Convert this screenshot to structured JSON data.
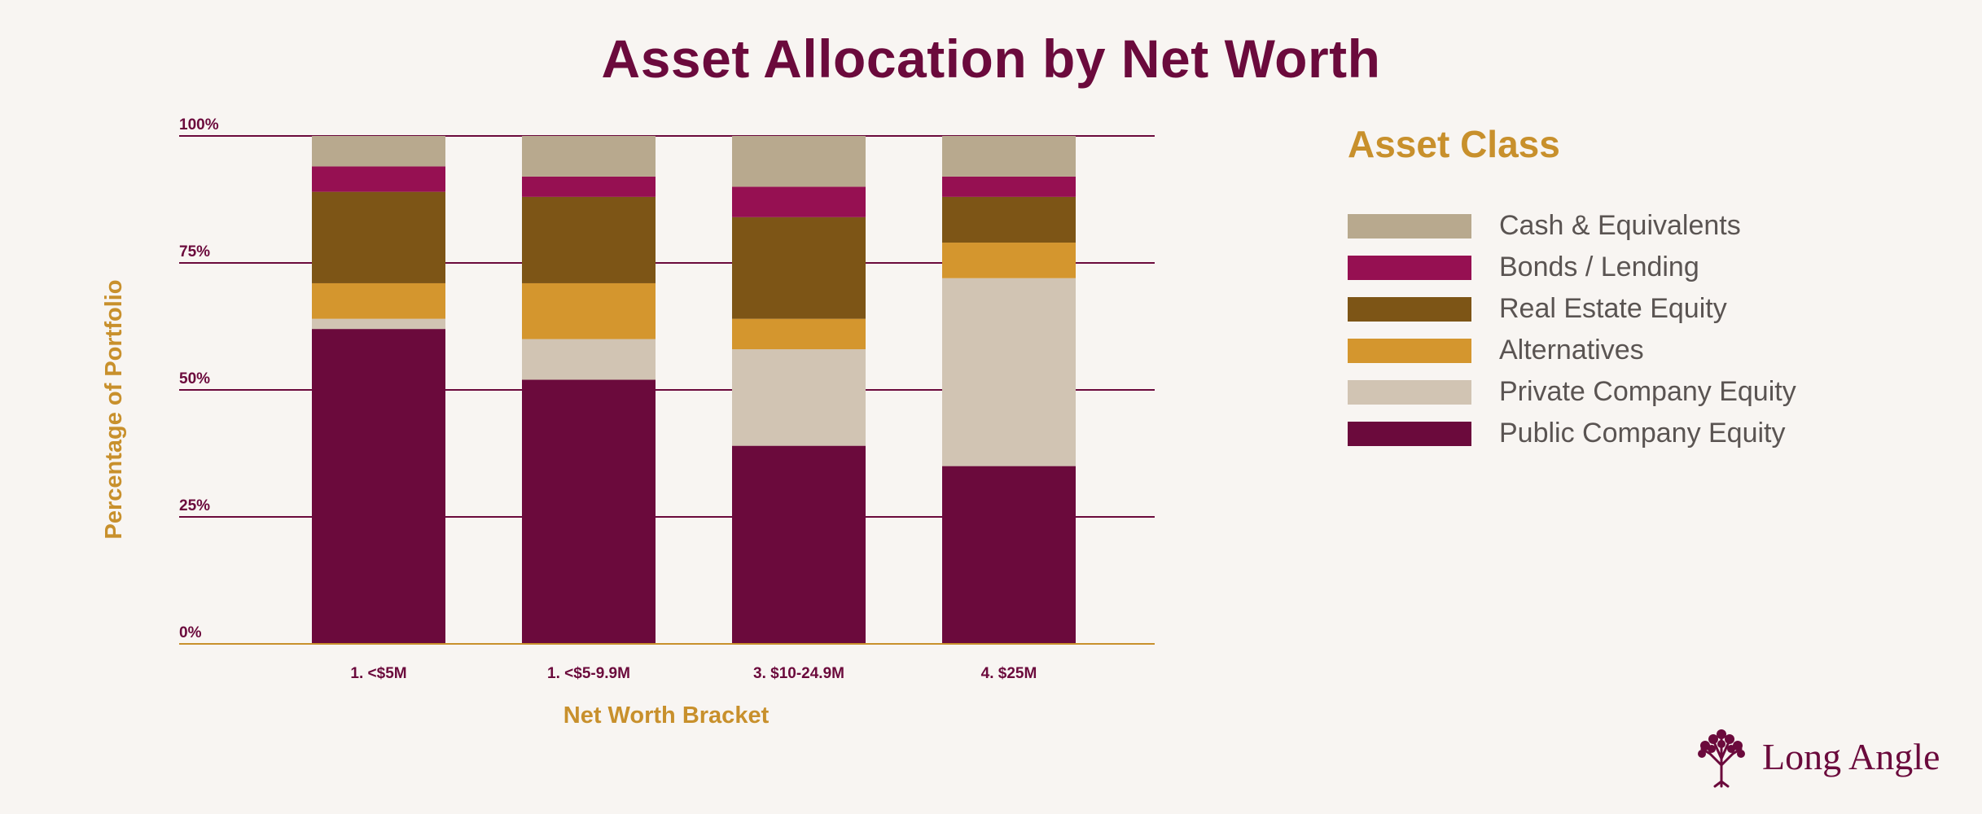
{
  "chart_data": {
    "type": "bar",
    "stacked": true,
    "title": "Asset Allocation by Net Worth",
    "xlabel": "Net Worth Bracket",
    "ylabel": "Percentage of Portfolio",
    "ylim": [
      0,
      100
    ],
    "yticks": [
      0,
      25,
      50,
      75,
      100
    ],
    "ytick_labels": [
      "0%",
      "25%",
      "50%",
      "75%",
      "100%"
    ],
    "grid": true,
    "legend_position": "right",
    "legend_title": "Asset Class",
    "categories": [
      "1. <$5M",
      "1. <$5-9.9M",
      "3. $10-24.9M",
      "4. $25M"
    ],
    "series": [
      {
        "name": "Public Company Equity",
        "color": "#6b0a3c",
        "values": [
          62,
          52,
          39,
          35
        ]
      },
      {
        "name": "Private Company Equity",
        "color": "#d1c4b3",
        "values": [
          2,
          8,
          19,
          37
        ]
      },
      {
        "name": "Alternatives",
        "color": "#d4962e",
        "values": [
          7,
          11,
          6,
          7
        ]
      },
      {
        "name": "Real Estate Equity",
        "color": "#7d5516",
        "values": [
          18,
          17,
          20,
          9
        ]
      },
      {
        "name": "Bonds / Lending",
        "color": "#961052",
        "values": [
          5,
          4,
          6,
          4
        ]
      },
      {
        "name": "Cash & Equivalents",
        "color": "#b8a98e",
        "values": [
          6,
          8,
          10,
          8
        ]
      }
    ]
  },
  "legend_order": [
    "Cash & Equivalents",
    "Bonds / Lending",
    "Real Estate Equity",
    "Alternatives",
    "Private Company Equity",
    "Public Company Equity"
  ],
  "brand": {
    "name": "Long Angle",
    "icon": "tree-icon"
  },
  "colors": {
    "title": "#6b0a3c",
    "accent": "#c8902c",
    "gridline": "#6b0a3c",
    "axis": "#c8902c",
    "background": "#f8f5f2"
  }
}
